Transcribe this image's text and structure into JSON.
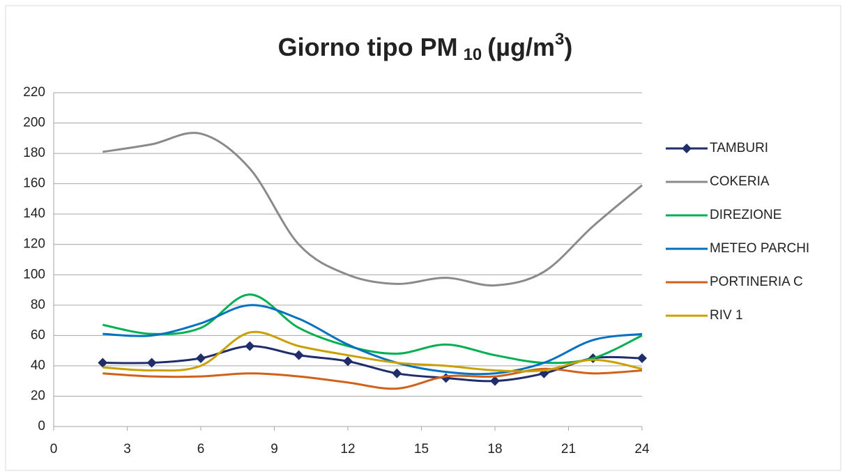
{
  "chart_data": {
    "type": "line",
    "title_parts": [
      "Giorno tipo PM",
      "10",
      "(µg/m",
      "3",
      ")"
    ],
    "x": [
      2,
      4,
      6,
      8,
      10,
      12,
      14,
      16,
      18,
      20,
      22,
      24
    ],
    "series": [
      {
        "name": "TAMBURI",
        "color": "#1f2d6b",
        "marker": "diamond",
        "values": [
          42,
          42,
          45,
          53,
          47,
          43,
          35,
          32,
          30,
          35,
          45,
          45
        ]
      },
      {
        "name": "COKERIA",
        "color": "#8a8a8a",
        "values": [
          181,
          186,
          193,
          170,
          120,
          100,
          94,
          98,
          93,
          102,
          132,
          159
        ]
      },
      {
        "name": "DIREZIONE",
        "color": "#00b050",
        "values": [
          67,
          61,
          65,
          87,
          65,
          53,
          48,
          54,
          47,
          42,
          45,
          60
        ]
      },
      {
        "name": "METEO PARCHI",
        "color": "#0070c0",
        "values": [
          61,
          60,
          68,
          80,
          71,
          54,
          42,
          36,
          35,
          42,
          57,
          61
        ]
      },
      {
        "name": "PORTINERIA C",
        "color": "#d0601a",
        "values": [
          35,
          33,
          33,
          35,
          33,
          29,
          25,
          33,
          33,
          38,
          35,
          37
        ]
      },
      {
        "name": "RIV 1",
        "color": "#c9a000",
        "values": [
          39,
          37,
          40,
          62,
          53,
          47,
          42,
          40,
          37,
          37,
          44,
          38
        ]
      }
    ],
    "xlim": [
      0,
      24
    ],
    "xticks": [
      0,
      3,
      6,
      9,
      12,
      15,
      18,
      21,
      24
    ],
    "ylim": [
      0,
      220
    ],
    "yticks": [
      0,
      20,
      40,
      60,
      80,
      100,
      120,
      140,
      160,
      180,
      200,
      220
    ],
    "grid": true,
    "smooth": true,
    "legend": "right"
  }
}
